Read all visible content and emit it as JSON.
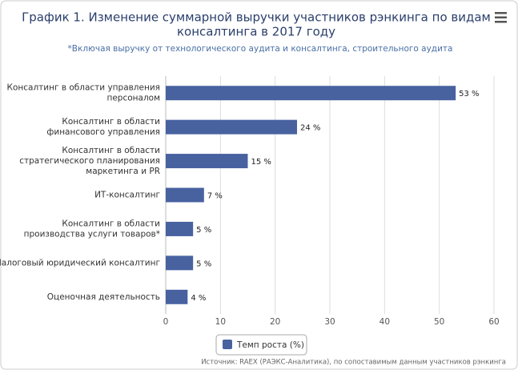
{
  "chart_data": {
    "type": "barh",
    "title": [
      "График 1. Изменение суммарной выручки участников рэнкинга по видам",
      "консалтинга в 2017 году"
    ],
    "subtitle": "*Включая выручку от технологического аудита и консалтинга, строительного аудита",
    "source": "Источник: RAEX (РАЭКС-Аналитика), по сопоставимым данным участников рэнкинга",
    "categories": [
      "Консалтинг в области управления\nперсоналом",
      "Консалтинг в области\nфинансового управления",
      "Консалтинг в области\nстратегического планирования\nмаркетинга и PR",
      "ИТ-консалтинг",
      "Консалтинг в области\nпроизводства услуги товаров*",
      "Налоговый юридический консалтинг",
      "Оценочная деятельность"
    ],
    "series": [
      {
        "name": "Темп роста (%)",
        "color": "#4862a0",
        "values": [
          53,
          24,
          15,
          7,
          5,
          5,
          4
        ],
        "value_labels": [
          "53 %",
          "24 %",
          "15 %",
          "7 %",
          "5 %",
          "5 %",
          "4 %"
        ]
      }
    ],
    "xlim": [
      0,
      60
    ],
    "xticks": [
      0,
      10,
      20,
      30,
      40,
      50,
      60
    ],
    "grid": true
  }
}
